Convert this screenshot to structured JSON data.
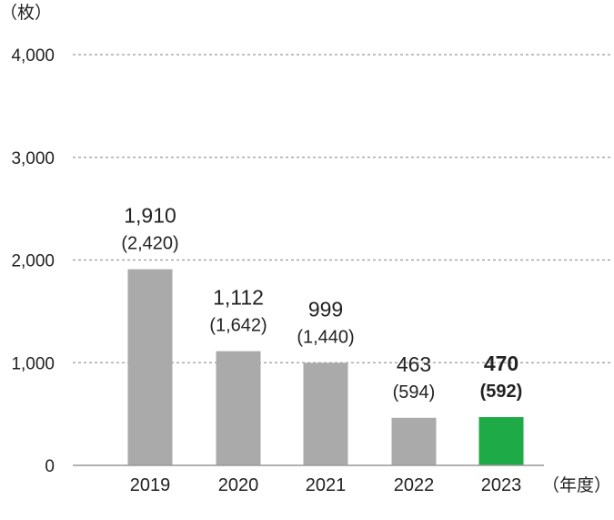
{
  "chart_data": {
    "type": "bar",
    "y_unit_label": "（枚）",
    "x_unit_label": "（年度）",
    "categories": [
      "2019",
      "2020",
      "2021",
      "2022",
      "2023"
    ],
    "values": [
      1910,
      1112,
      999,
      463,
      470
    ],
    "value_labels": [
      "1,910",
      "1,112",
      "999",
      "463",
      "470"
    ],
    "sub_labels": [
      "(2,420)",
      "(1,642)",
      "(1,440)",
      "(594)",
      "(592)"
    ],
    "highlight_index": 4,
    "colors": {
      "bar": "#aaaaaa",
      "highlight": "#1faa48",
      "grid": "#9a9a9a",
      "axis": "#999999"
    },
    "ylim": [
      0,
      4000
    ],
    "yticks": [
      0,
      1000,
      2000,
      3000,
      4000
    ],
    "ytick_labels": [
      "0",
      "1,000",
      "2,000",
      "3,000",
      "4,000"
    ],
    "grid": true
  }
}
